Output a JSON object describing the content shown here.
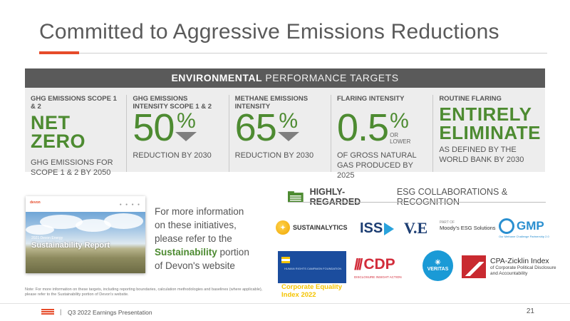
{
  "title": "Committed to Aggressive Emissions Reductions",
  "targets": {
    "header_bold": "ENVIRONMENTAL",
    "header_light": "PERFORMANCE TARGETS",
    "items": [
      {
        "label": "GHG EMISSIONS SCOPE 1 & 2",
        "value": "NET ZERO",
        "desc": "GHG EMISSIONS FOR SCOPE 1 & 2 BY 2050"
      },
      {
        "label": "GHG EMISSIONS INTENSITY SCOPE 1 & 2",
        "value": "50",
        "unit": "%",
        "desc": "REDUCTION BY 2030"
      },
      {
        "label": "METHANE EMISSIONS INTENSITY",
        "value": "65",
        "unit": "%",
        "desc": "REDUCTION BY 2030"
      },
      {
        "label": "FLARING INTENSITY",
        "value": "0.5",
        "unit": "%",
        "qualifier": "OR LOWER",
        "desc": "OF GROSS NATURAL GAS PRODUCED BY 2025"
      },
      {
        "label": "ROUTINE FLARING",
        "value": "ENTIRELY ELIMINATE",
        "desc": "AS DEFINED BY THE WORLD BANK BY 2030"
      }
    ]
  },
  "report": {
    "logo": "devon",
    "small": "2021 Devon Energy",
    "title": "Sustainability Report"
  },
  "more_info": {
    "before": "For more information on these initiatives, please refer to the",
    "highlight": "Sustainability",
    "after": "portion of Devon's website"
  },
  "recognition": {
    "header_bold": "HIGHLY-REGARDED",
    "header_light": "ESG COLLABORATIONS & RECOGNITION",
    "sustainalytics": "SUSTAINALYTICS",
    "iss": "ISS",
    "ve": "V.E",
    "moodys_partof": "PART OF",
    "moodys_name": "Moody's ESG Solutions",
    "gmp": "GMP",
    "gmp_sub": "Our Methane Challenge Partnership 2.0",
    "cei_small": "HUMAN RIGHTS CAMPAIGN FOUNDATION",
    "cei_line1": "Corporate Equality",
    "cei_line2": "Index 2022",
    "cdp": "CDP",
    "cdp_sub": "DISCLOSURE INSIGHT ACTION",
    "veritas": "VERITAS",
    "cpa_title": "CPA-Zicklin Index",
    "cpa_sub1": "of Corporate Political Disclosure",
    "cpa_sub2": "and Accountability"
  },
  "note": "Note: For more information on these targets, including reporting boundaries, calculation methodologies and baselines (where applicable), please refer to the Sustainability portion of Devon's website.",
  "footer": {
    "separator": "|",
    "text": "Q3 2022 Earnings Presentation",
    "page": "21"
  },
  "colors": {
    "accent": "#e64b2a",
    "green": "#4d8b31",
    "header_bar": "#5a5a5a"
  }
}
